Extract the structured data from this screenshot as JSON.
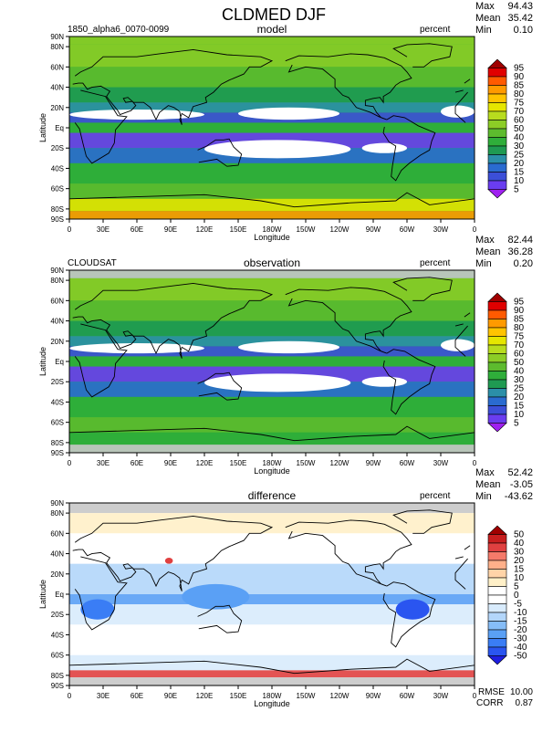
{
  "title": "CLDMED DJF",
  "lon_ticks": [
    "0",
    "30E",
    "60E",
    "90E",
    "120E",
    "150E",
    "180W",
    "150W",
    "120W",
    "90W",
    "60W",
    "30W",
    "0"
  ],
  "lat_ticks": [
    "90N",
    "80N",
    "60N",
    "40N",
    "20N",
    "Eq",
    "20S",
    "40S",
    "60S",
    "80S",
    "90S"
  ],
  "xlabel": "Longitude",
  "ylabel": "Latitude",
  "chart_data": [
    {
      "type": "heatmap",
      "panel": "model",
      "title": "model",
      "case_label": "1850_alpha6_0070-0099",
      "units": "percent",
      "stats": {
        "max": "94.43",
        "mean": "35.42",
        "min": "0.10"
      },
      "colorbar_levels": [
        "5",
        "10",
        "15",
        "20",
        "25",
        "30",
        "40",
        "50",
        "60",
        "70",
        "75",
        "80",
        "85",
        "90",
        "95"
      ],
      "colorbar_colors": [
        "#a020f0",
        "#6a3df0",
        "#3c4fd8",
        "#2a6bd0",
        "#2b8fa8",
        "#1f9a52",
        "#2fae3a",
        "#5dbb2e",
        "#8ccd26",
        "#b8dc1e",
        "#e6e600",
        "#ffc400",
        "#ff9a00",
        "#ff5a00",
        "#e00000",
        "#a00000"
      ],
      "xlabel": "Longitude",
      "ylabel": "Latitude",
      "xlim": [
        0,
        360
      ],
      "ylim": [
        -90,
        90
      ]
    },
    {
      "type": "heatmap",
      "panel": "observation",
      "title": "observation",
      "case_label": "CLOUDSAT",
      "units": "percent",
      "stats": {
        "max": "82.44",
        "mean": "36.28",
        "min": "0.20"
      },
      "colorbar_levels": [
        "5",
        "10",
        "15",
        "20",
        "25",
        "30",
        "40",
        "50",
        "60",
        "70",
        "75",
        "80",
        "85",
        "90",
        "95"
      ],
      "colorbar_colors": [
        "#a020f0",
        "#6a3df0",
        "#3c4fd8",
        "#2a6bd0",
        "#2b8fa8",
        "#1f9a52",
        "#2fae3a",
        "#5dbb2e",
        "#8ccd26",
        "#b8dc1e",
        "#e6e600",
        "#ffc400",
        "#ff9a00",
        "#ff5a00",
        "#e00000",
        "#a00000"
      ],
      "xlabel": "Longitude",
      "ylabel": "Latitude",
      "xlim": [
        0,
        360
      ],
      "ylim": [
        -90,
        90
      ]
    },
    {
      "type": "heatmap",
      "panel": "difference",
      "title": "difference",
      "case_label": "",
      "units": "percent",
      "stats": {
        "max": "52.42",
        "mean": "-3.05",
        "min": "-43.62",
        "rmse": "10.00",
        "corr": "0.87"
      },
      "colorbar_levels": [
        "-50",
        "-40",
        "-30",
        "-20",
        "-15",
        "-10",
        "-5",
        "0",
        "5",
        "10",
        "15",
        "20",
        "30",
        "40",
        "50"
      ],
      "colorbar_colors": [
        "#1e1ee0",
        "#2a55f0",
        "#3a7df5",
        "#5aa0f5",
        "#86bdf7",
        "#b3d6fa",
        "#d8ebfc",
        "#ffffff",
        "#ffffff",
        "#fff0c8",
        "#ffd4a8",
        "#ffb08a",
        "#f57a6a",
        "#e04040",
        "#c81e1e",
        "#a00000"
      ],
      "xlabel": "Longitude",
      "ylabel": "Latitude",
      "xlim": [
        0,
        360
      ],
      "ylim": [
        -90,
        90
      ]
    }
  ],
  "labels": {
    "max": "Max",
    "mean": "Mean",
    "min": "Min",
    "rmse": "RMSE",
    "corr": "CORR"
  }
}
